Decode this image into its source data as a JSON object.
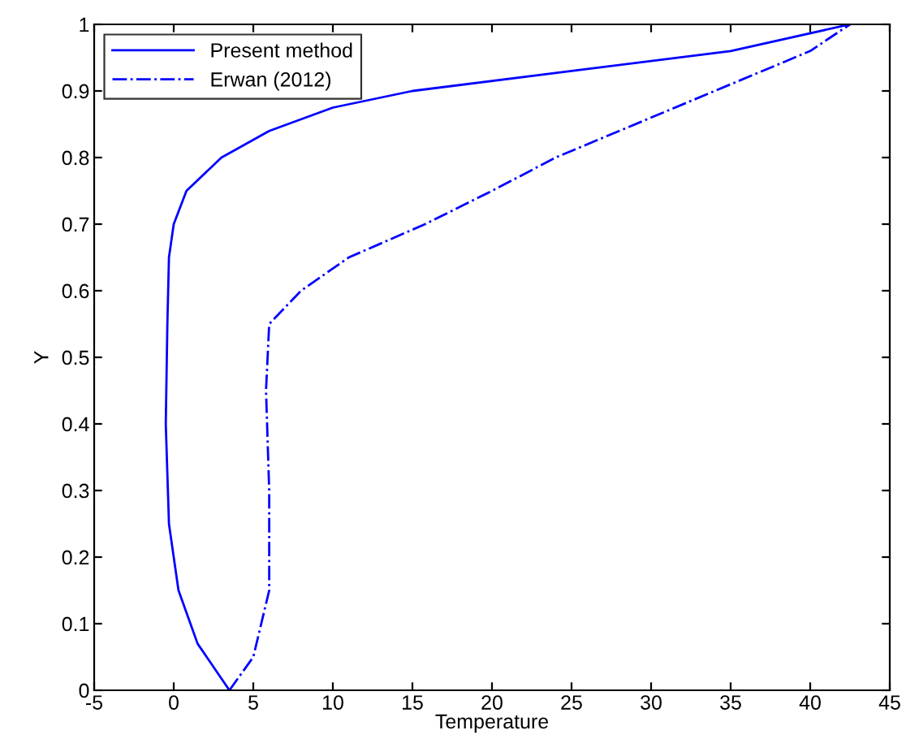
{
  "chart_data": {
    "type": "line",
    "xlabel": "Temperature",
    "ylabel": "Y",
    "xlim": [
      -5,
      45
    ],
    "xticks": [
      -5,
      0,
      5,
      10,
      15,
      20,
      25,
      30,
      35,
      40,
      45
    ],
    "ylim": [
      0,
      1
    ],
    "yticks": [
      0,
      0.1,
      0.2,
      0.3,
      0.4,
      0.5,
      0.6,
      0.7,
      0.8,
      0.9,
      1
    ],
    "grid": false,
    "legend": "top left",
    "series": [
      {
        "name": "Present method",
        "color": "#0000ff",
        "line_style": "solid",
        "x": [
          3.5,
          1.5,
          0.3,
          -0.3,
          -0.5,
          -0.4,
          -0.3,
          0,
          0.8,
          3,
          6,
          10,
          15,
          25,
          35,
          42.5
        ],
        "values": [
          0,
          0.07,
          0.15,
          0.25,
          0.4,
          0.55,
          0.65,
          0.7,
          0.75,
          0.8,
          0.84,
          0.875,
          0.9,
          0.93,
          0.96,
          1.0
        ]
      },
      {
        "name": "Erwan (2012)",
        "color": "#0000ff",
        "line_style": "dashdot",
        "x": [
          3.5,
          5,
          6,
          6,
          5.8,
          6,
          8,
          11,
          15.8,
          20,
          24,
          30,
          35,
          40,
          42.5
        ],
        "values": [
          0,
          0.05,
          0.15,
          0.3,
          0.45,
          0.55,
          0.6,
          0.65,
          0.7,
          0.75,
          0.8,
          0.86,
          0.91,
          0.96,
          1.0
        ]
      }
    ]
  }
}
